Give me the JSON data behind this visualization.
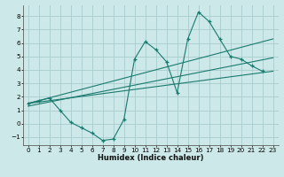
{
  "xlabel": "Humidex (Indice chaleur)",
  "bg_color": "#cce8e8",
  "line_color": "#1a7a6e",
  "grid_color": "#aacccc",
  "xlim": [
    -0.5,
    23.5
  ],
  "ylim": [
    -1.6,
    8.8
  ],
  "xticks": [
    0,
    1,
    2,
    3,
    4,
    5,
    6,
    7,
    8,
    9,
    10,
    11,
    12,
    13,
    14,
    15,
    16,
    17,
    18,
    19,
    20,
    21,
    22,
    23
  ],
  "yticks": [
    -1,
    0,
    1,
    2,
    3,
    4,
    5,
    6,
    7,
    8
  ],
  "curve_x": [
    0,
    1,
    2,
    3,
    4,
    5,
    6,
    7,
    8,
    9,
    10,
    11,
    12,
    13,
    14,
    15,
    16,
    17,
    18,
    19,
    20,
    21,
    22,
    23
  ],
  "curve_y": [
    1.5,
    1.7,
    1.9,
    1.0,
    0.1,
    -0.3,
    -0.7,
    -1.25,
    -1.15,
    0.3,
    4.8,
    6.1,
    5.5,
    4.6,
    2.3,
    6.3,
    8.3,
    7.6,
    6.3,
    5.0,
    4.8,
    4.3,
    3.9,
    null
  ],
  "line1_x": [
    0,
    23
  ],
  "line1_y": [
    1.5,
    3.9
  ],
  "line2_x": [
    0,
    23
  ],
  "line2_y": [
    1.5,
    6.3
  ],
  "line3_x": [
    0,
    23
  ],
  "line3_y": [
    1.3,
    4.9
  ],
  "xlabel_fontsize": 6.0,
  "tick_fontsize": 5.2
}
